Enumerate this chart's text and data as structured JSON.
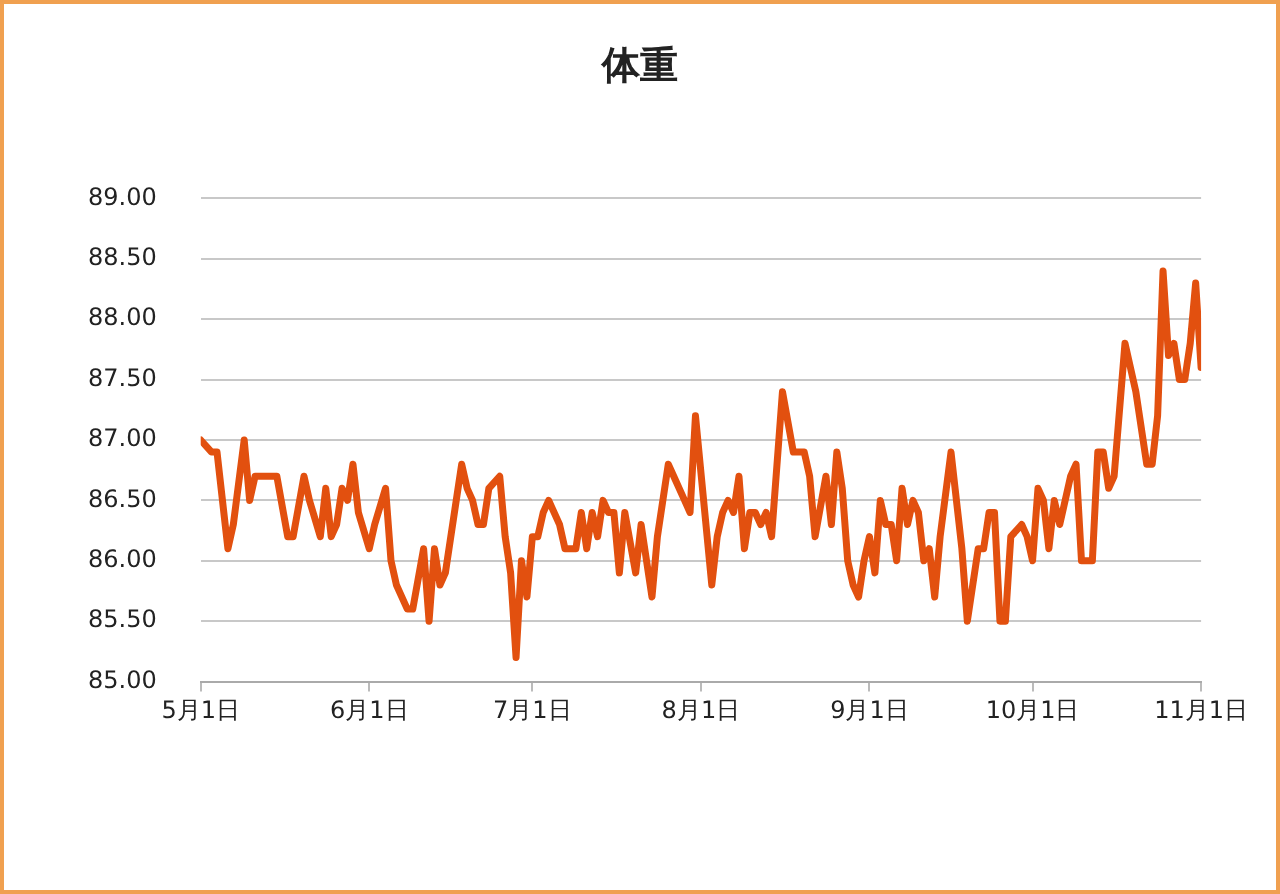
{
  "chart_data": {
    "type": "line",
    "title": "体重",
    "x": [
      "--05-01",
      "--05-03",
      "--05-04",
      "--05-06",
      "--05-07",
      "--05-09",
      "--05-10",
      "--05-11",
      "--05-15",
      "--05-17",
      "--05-18",
      "--05-20",
      "--05-21",
      "--05-23",
      "--05-24",
      "--05-25",
      "--05-26",
      "--05-27",
      "--05-28",
      "--05-29",
      "--05-30",
      "--06-01",
      "--06-02",
      "--06-04",
      "--06-05",
      "--06-06",
      "--06-08",
      "--06-09",
      "--06-11",
      "--06-12",
      "--06-13",
      "--06-14",
      "--06-15",
      "--06-18",
      "--06-19",
      "--06-20",
      "--06-21",
      "--06-22",
      "--06-23",
      "--06-25",
      "--06-26",
      "--06-27",
      "--06-28",
      "--06-29",
      "--06-30",
      "--07-01",
      "--07-02",
      "--07-03",
      "--07-04",
      "--07-06",
      "--07-07",
      "--07-09",
      "--07-10",
      "--07-11",
      "--07-12",
      "--07-13",
      "--07-14",
      "--07-15",
      "--07-16",
      "--07-17",
      "--07-18",
      "--07-20",
      "--07-21",
      "--07-22",
      "--07-23",
      "--07-24",
      "--07-26",
      "--07-27",
      "--07-29",
      "--07-30",
      "--07-31",
      "--08-03",
      "--08-04",
      "--08-05",
      "--08-06",
      "--08-07",
      "--08-08",
      "--08-09",
      "--08-10",
      "--08-11",
      "--08-12",
      "--08-13",
      "--08-14",
      "--08-16",
      "--08-18",
      "--08-20",
      "--08-21",
      "--08-22",
      "--08-24",
      "--08-25",
      "--08-26",
      "--08-27",
      "--08-28",
      "--08-29",
      "--08-30",
      "--08-31",
      "--09-01",
      "--09-02",
      "--09-03",
      "--09-04",
      "--09-05",
      "--09-06",
      "--09-07",
      "--09-08",
      "--09-09",
      "--09-10",
      "--09-11",
      "--09-12",
      "--09-13",
      "--09-14",
      "--09-16",
      "--09-18",
      "--09-19",
      "--09-21",
      "--09-22",
      "--09-23",
      "--09-24",
      "--09-25",
      "--09-26",
      "--09-27",
      "--09-29",
      "--09-30",
      "--10-01",
      "--10-02",
      "--10-03",
      "--10-04",
      "--10-05",
      "--10-06",
      "--10-08",
      "--10-09",
      "--10-10",
      "--10-12",
      "--10-13",
      "--10-14",
      "--10-15",
      "--10-16",
      "--10-18",
      "--10-19",
      "--10-20",
      "--10-22",
      "--10-23",
      "--10-24",
      "--10-25",
      "--10-26",
      "--10-27",
      "--10-28",
      "--10-29",
      "--10-30",
      "--10-31",
      "--11-01"
    ],
    "series": [
      {
        "color": "#e2500f",
        "values": [
          87.0,
          86.9,
          86.9,
          86.1,
          86.3,
          87.0,
          86.5,
          86.7,
          86.7,
          86.2,
          86.2,
          86.7,
          86.5,
          86.2,
          86.6,
          86.2,
          86.3,
          86.6,
          86.5,
          86.8,
          86.4,
          86.1,
          86.3,
          86.6,
          86.0,
          85.8,
          85.6,
          85.6,
          86.1,
          85.5,
          86.1,
          85.8,
          85.9,
          86.8,
          86.6,
          86.5,
          86.3,
          86.3,
          86.6,
          86.7,
          86.2,
          85.9,
          85.2,
          86.0,
          85.7,
          86.2,
          86.2,
          86.4,
          86.5,
          86.3,
          86.1,
          86.1,
          86.4,
          86.1,
          86.4,
          86.2,
          86.5,
          86.4,
          86.4,
          85.9,
          86.4,
          85.9,
          86.3,
          86.0,
          85.7,
          86.2,
          86.8,
          86.7,
          86.5,
          86.4,
          87.2,
          85.8,
          86.2,
          86.4,
          86.5,
          86.4,
          86.7,
          86.1,
          86.4,
          86.4,
          86.3,
          86.4,
          86.2,
          87.4,
          86.9,
          86.9,
          86.7,
          86.2,
          86.7,
          86.3,
          86.9,
          86.6,
          86.0,
          85.8,
          85.7,
          86.0,
          86.2,
          85.9,
          86.5,
          86.3,
          86.3,
          86.0,
          86.6,
          86.3,
          86.5,
          86.4,
          86.0,
          86.1,
          85.7,
          86.2,
          86.9,
          86.1,
          85.5,
          86.1,
          86.1,
          86.4,
          86.4,
          85.5,
          85.5,
          86.2,
          86.3,
          86.2,
          86.0,
          86.6,
          86.5,
          86.1,
          86.5,
          86.3,
          86.7,
          86.8,
          86.0,
          86.0,
          86.9,
          86.9,
          86.6,
          86.7,
          87.8,
          87.6,
          87.4,
          86.8,
          86.8,
          87.2,
          88.4,
          87.7,
          87.8,
          87.5,
          87.5,
          87.8,
          88.3,
          87.6
        ]
      }
    ],
    "xlim": [
      "--05-01",
      "--11-01"
    ],
    "xticks": [
      {
        "value": "--05-01",
        "label": "5月1日"
      },
      {
        "value": "--06-01",
        "label": "6月1日"
      },
      {
        "value": "--07-01",
        "label": "7月1日"
      },
      {
        "value": "--08-01",
        "label": "8月1日"
      },
      {
        "value": "--09-01",
        "label": "9月1日"
      },
      {
        "value": "--10-01",
        "label": "10月1日"
      },
      {
        "value": "--11-01",
        "label": "11月1日"
      }
    ],
    "ylim": [
      85,
      89
    ],
    "yticks": [
      {
        "value": 85,
        "label": "85.00"
      },
      {
        "value": 85.5,
        "label": "85.50"
      },
      {
        "value": 86,
        "label": "86.00"
      },
      {
        "value": 86.5,
        "label": "86.50"
      },
      {
        "value": 87,
        "label": "87.00"
      },
      {
        "value": 87.5,
        "label": "87.50"
      },
      {
        "value": 88,
        "label": "88.00"
      },
      {
        "value": 88.5,
        "label": "88.50"
      },
      {
        "value": 89,
        "label": "89.00"
      }
    ],
    "grid": "y",
    "legend": false,
    "marker": "none",
    "line_style": "solid"
  }
}
